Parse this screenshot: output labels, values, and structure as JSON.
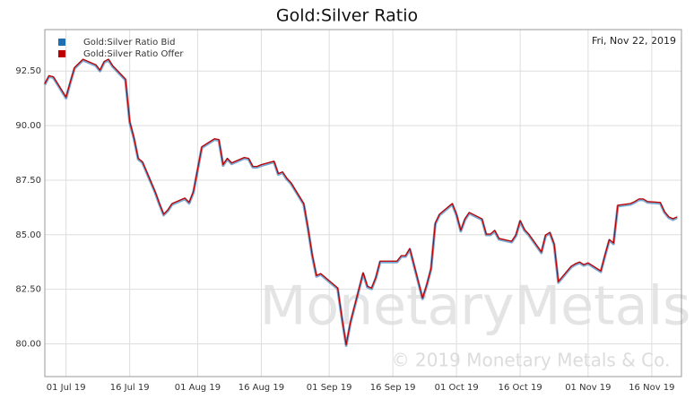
{
  "chart_data": {
    "type": "line",
    "title": "Gold:Silver Ratio",
    "date_label": "Fri, Nov 22, 2019",
    "watermark": "MonetaryMetals",
    "copyright": "© 2019 Monetary Metals & Co.",
    "x": [
      "2019-06-26",
      "2019-06-27",
      "2019-06-28",
      "2019-07-01",
      "2019-07-02",
      "2019-07-03",
      "2019-07-05",
      "2019-07-08",
      "2019-07-09",
      "2019-07-10",
      "2019-07-11",
      "2019-07-12",
      "2019-07-15",
      "2019-07-16",
      "2019-07-17",
      "2019-07-18",
      "2019-07-19",
      "2019-07-22",
      "2019-07-23",
      "2019-07-24",
      "2019-07-25",
      "2019-07-26",
      "2019-07-29",
      "2019-07-30",
      "2019-07-31",
      "2019-08-01",
      "2019-08-02",
      "2019-08-05",
      "2019-08-06",
      "2019-08-07",
      "2019-08-08",
      "2019-08-09",
      "2019-08-12",
      "2019-08-13",
      "2019-08-14",
      "2019-08-15",
      "2019-08-16",
      "2019-08-19",
      "2019-08-20",
      "2019-08-21",
      "2019-08-22",
      "2019-08-23",
      "2019-08-26",
      "2019-08-27",
      "2019-08-28",
      "2019-08-29",
      "2019-08-30",
      "2019-09-03",
      "2019-09-04",
      "2019-09-05",
      "2019-09-06",
      "2019-09-09",
      "2019-09-10",
      "2019-09-11",
      "2019-09-12",
      "2019-09-13",
      "2019-09-16",
      "2019-09-17",
      "2019-09-18",
      "2019-09-19",
      "2019-09-20",
      "2019-09-23",
      "2019-09-24",
      "2019-09-25",
      "2019-09-26",
      "2019-09-27",
      "2019-09-30",
      "2019-10-01",
      "2019-10-02",
      "2019-10-03",
      "2019-10-04",
      "2019-10-07",
      "2019-10-08",
      "2019-10-09",
      "2019-10-10",
      "2019-10-11",
      "2019-10-14",
      "2019-10-15",
      "2019-10-16",
      "2019-10-17",
      "2019-10-18",
      "2019-10-21",
      "2019-10-22",
      "2019-10-23",
      "2019-10-24",
      "2019-10-25",
      "2019-10-28",
      "2019-10-29",
      "2019-10-30",
      "2019-10-31",
      "2019-11-01",
      "2019-11-04",
      "2019-11-05",
      "2019-11-06",
      "2019-11-07",
      "2019-11-08",
      "2019-11-11",
      "2019-11-12",
      "2019-11-13",
      "2019-11-14",
      "2019-11-15",
      "2019-11-18",
      "2019-11-19",
      "2019-11-20",
      "2019-11-21",
      "2019-11-22"
    ],
    "series": [
      {
        "name": "Gold:Silver Ratio Bid",
        "color": "#1f6fb5",
        "values": [
          91.88,
          92.25,
          92.2,
          91.26,
          91.96,
          92.62,
          93.0,
          92.75,
          92.5,
          92.9,
          93.0,
          92.7,
          92.09,
          90.15,
          89.4,
          88.46,
          88.3,
          86.93,
          86.39,
          85.9,
          86.1,
          86.39,
          86.64,
          86.44,
          86.93,
          87.96,
          88.99,
          89.36,
          89.32,
          88.17,
          88.46,
          88.25,
          88.5,
          88.46,
          88.09,
          88.09,
          88.17,
          88.33,
          87.76,
          87.84,
          87.55,
          87.34,
          86.39,
          85.28,
          84.04,
          83.09,
          83.18,
          82.52,
          81.16,
          79.92,
          80.95,
          83.22,
          82.6,
          82.52,
          83.01,
          83.75,
          83.75,
          83.75,
          84.0,
          84.0,
          84.33,
          82.06,
          82.68,
          83.42,
          85.49,
          85.9,
          86.39,
          85.9,
          85.16,
          85.69,
          85.98,
          85.69,
          84.99,
          84.99,
          85.16,
          84.79,
          84.66,
          84.95,
          85.61,
          85.2,
          84.99,
          84.17,
          84.95,
          85.07,
          84.54,
          82.81,
          83.51,
          83.63,
          83.71,
          83.59,
          83.67,
          83.3,
          84.04,
          84.74,
          84.58,
          86.31,
          86.39,
          86.48,
          86.6,
          86.6,
          86.48,
          86.44,
          86.02,
          85.78,
          85.69,
          85.78
        ]
      },
      {
        "name": "Gold:Silver Ratio Offer",
        "color": "#c00000",
        "values": [
          91.92,
          92.29,
          92.24,
          91.3,
          92.0,
          92.66,
          93.04,
          92.79,
          92.54,
          92.94,
          93.04,
          92.74,
          92.13,
          90.19,
          89.44,
          88.5,
          88.34,
          86.97,
          86.43,
          85.94,
          86.14,
          86.43,
          86.68,
          86.48,
          86.97,
          88.0,
          89.03,
          89.4,
          89.36,
          88.21,
          88.5,
          88.29,
          88.54,
          88.5,
          88.13,
          88.13,
          88.21,
          88.37,
          87.8,
          87.88,
          87.59,
          87.38,
          86.43,
          85.32,
          84.08,
          83.13,
          83.22,
          82.56,
          81.2,
          79.96,
          80.99,
          83.26,
          82.64,
          82.56,
          83.05,
          83.79,
          83.79,
          83.79,
          84.04,
          84.04,
          84.37,
          82.1,
          82.72,
          83.46,
          85.53,
          85.94,
          86.43,
          85.94,
          85.2,
          85.73,
          86.02,
          85.73,
          85.03,
          85.03,
          85.2,
          84.83,
          84.7,
          84.99,
          85.65,
          85.24,
          85.03,
          84.21,
          84.99,
          85.11,
          84.58,
          82.85,
          83.55,
          83.67,
          83.75,
          83.63,
          83.71,
          83.34,
          84.08,
          84.78,
          84.62,
          86.35,
          86.43,
          86.52,
          86.64,
          86.64,
          86.52,
          86.48,
          86.06,
          85.82,
          85.73,
          85.82
        ]
      }
    ],
    "xlim": [
      "2019-06-26",
      "2019-11-23"
    ],
    "xticks": [
      {
        "value": "2019-07-01",
        "label": "01 Jul 19"
      },
      {
        "value": "2019-07-16",
        "label": "16 Jul 19"
      },
      {
        "value": "2019-08-01",
        "label": "01 Aug 19"
      },
      {
        "value": "2019-08-16",
        "label": "16 Aug 19"
      },
      {
        "value": "2019-09-01",
        "label": "01 Sep 19"
      },
      {
        "value": "2019-09-16",
        "label": "16 Sep 19"
      },
      {
        "value": "2019-10-01",
        "label": "01 Oct 19"
      },
      {
        "value": "2019-10-16",
        "label": "16 Oct 19"
      },
      {
        "value": "2019-11-01",
        "label": "01 Nov 19"
      },
      {
        "value": "2019-11-16",
        "label": "16 Nov 19"
      }
    ],
    "ylim": [
      78.5,
      94.4
    ],
    "yticks": [
      {
        "value": 80,
        "label": "80.00"
      },
      {
        "value": 82.5,
        "label": "82.50"
      },
      {
        "value": 85,
        "label": "85.00"
      },
      {
        "value": 87.5,
        "label": "87.50"
      },
      {
        "value": 90,
        "label": "90.00"
      },
      {
        "value": 92.5,
        "label": "92.50"
      }
    ],
    "grid": true,
    "legend": "top-left"
  }
}
